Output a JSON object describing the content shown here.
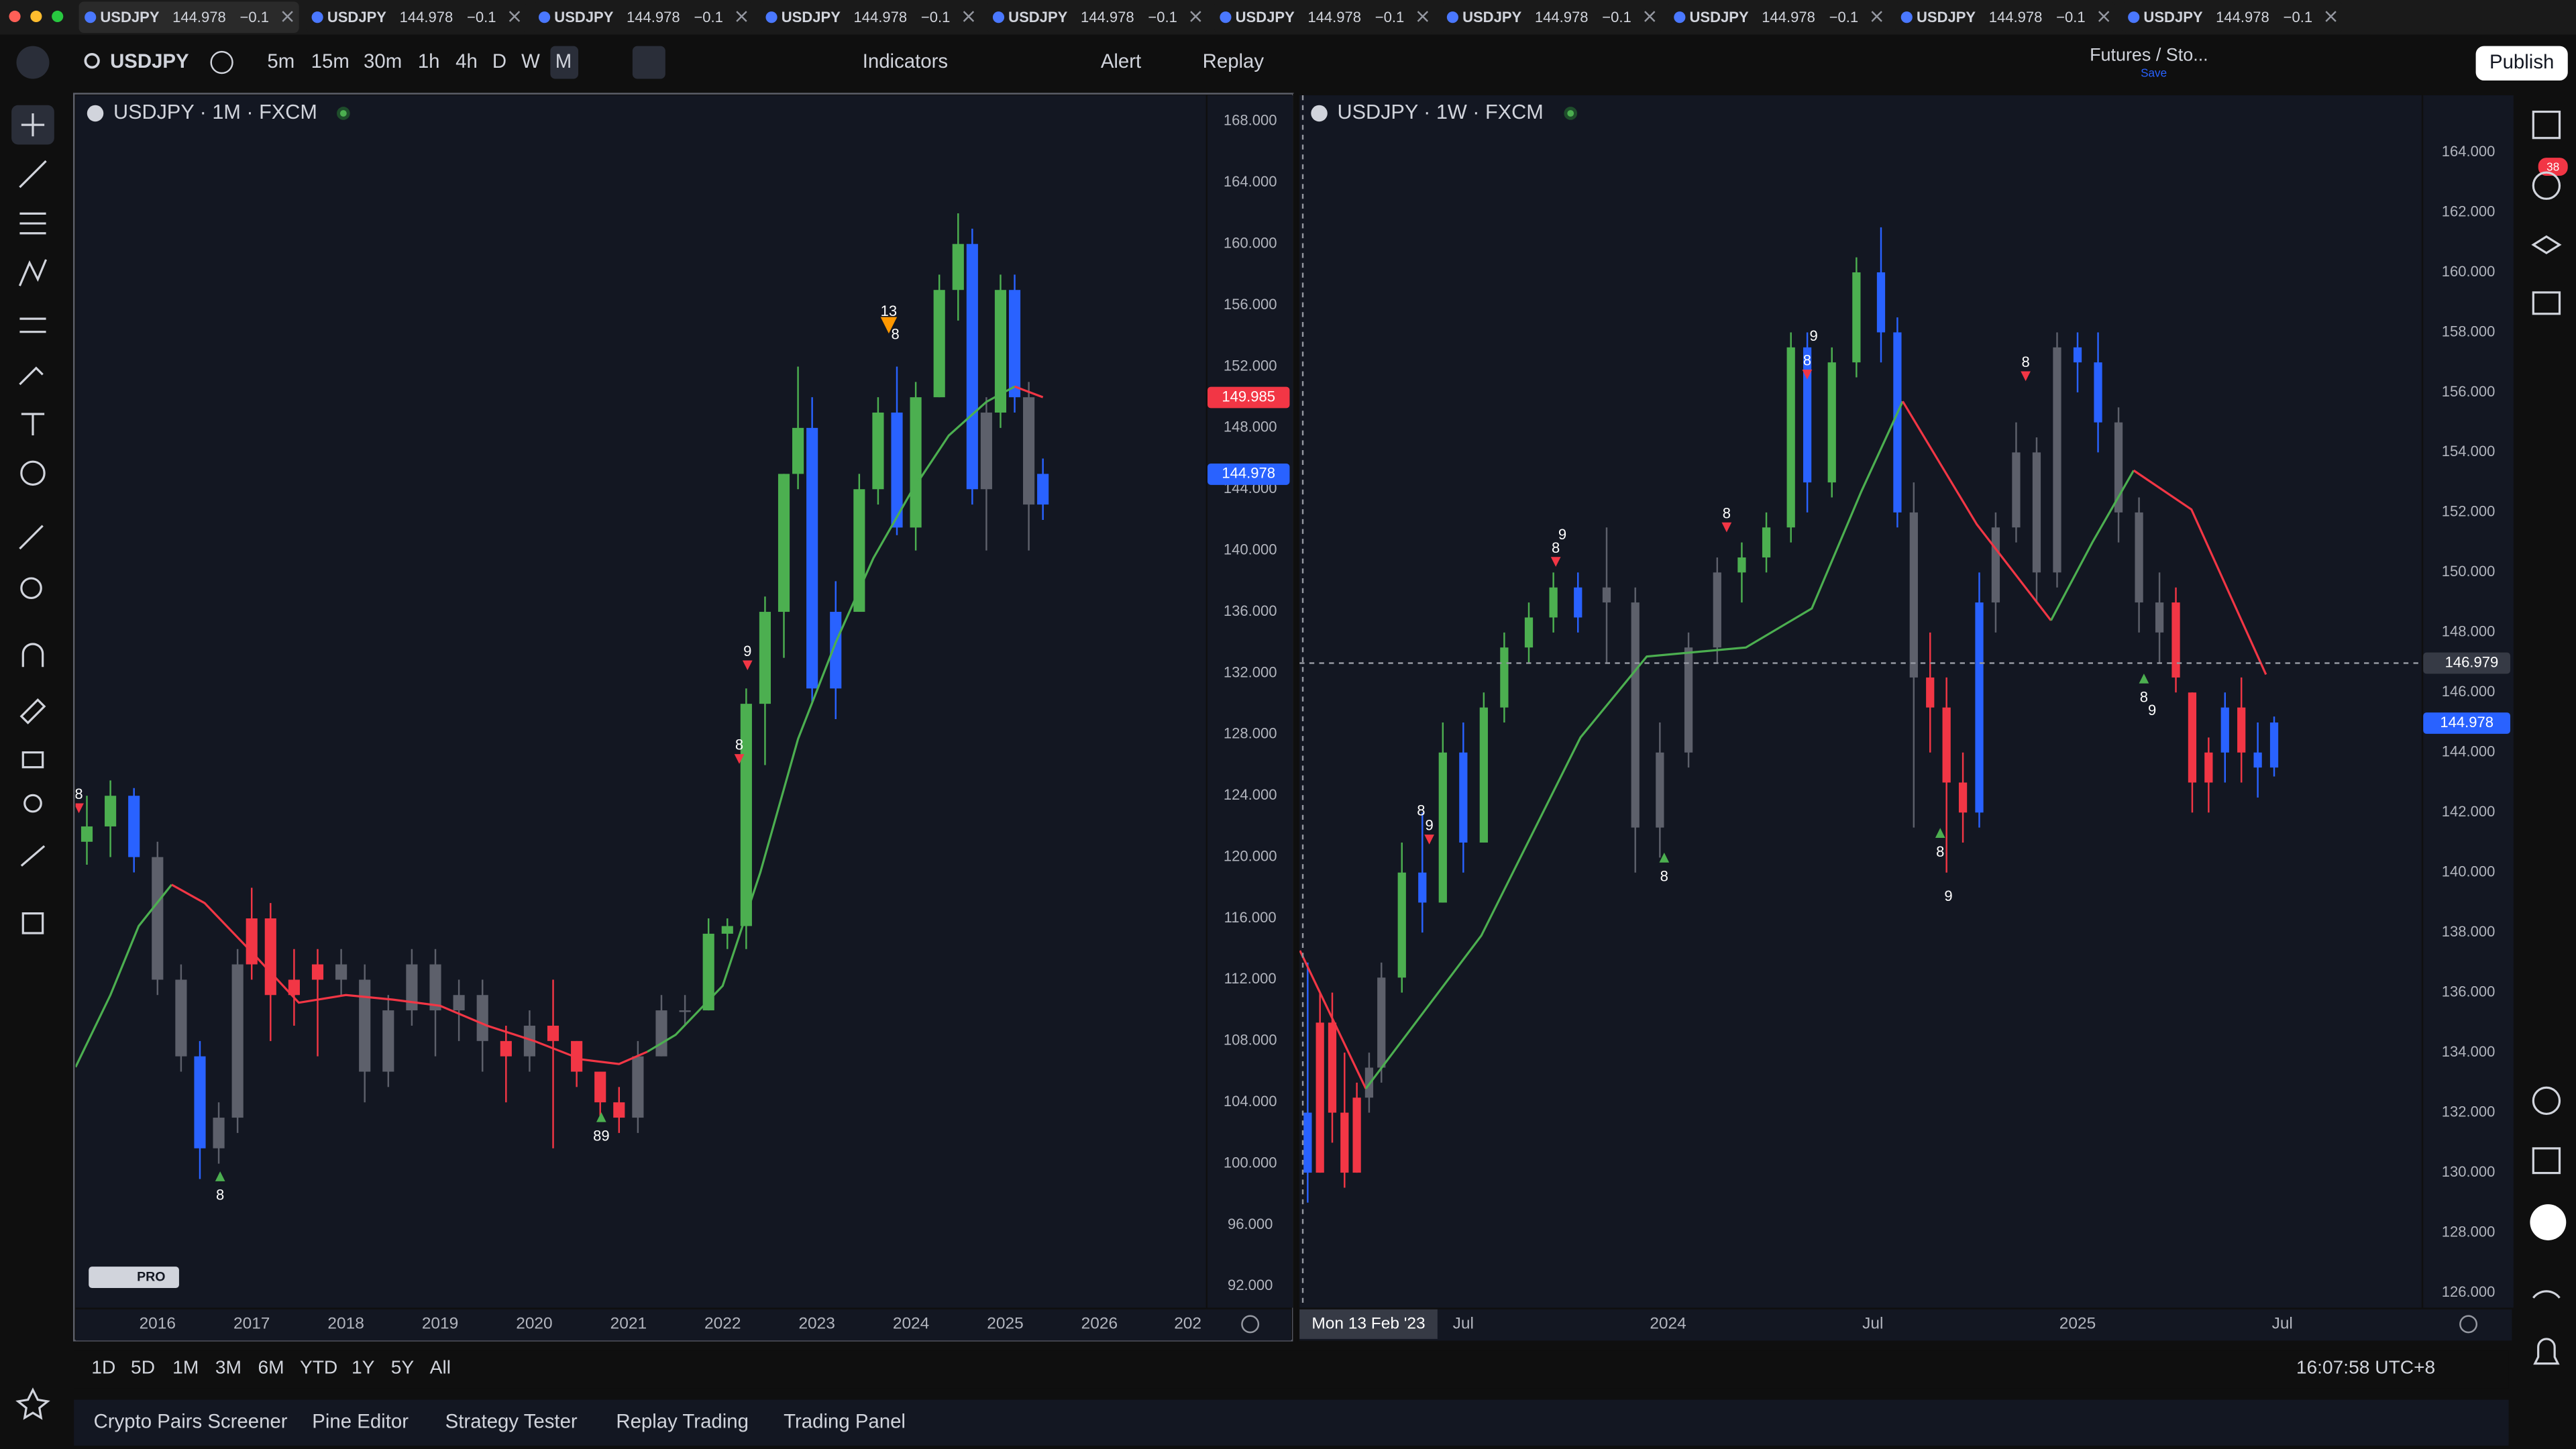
{
  "tabs": [
    {
      "symbol": "USDJPY",
      "price": "144.978",
      "change": "−0.1"
    },
    {
      "symbol": "USDJPY",
      "price": "144.978",
      "change": "−0.1"
    },
    {
      "symbol": "USDJPY",
      "price": "144.978",
      "change": "−0.1"
    },
    {
      "symbol": "USDJPY",
      "price": "144.978",
      "change": "−0.1"
    },
    {
      "symbol": "USDJPY",
      "price": "144.978",
      "change": "−0.1"
    },
    {
      "symbol": "USDJPY",
      "price": "144.978",
      "change": "−0.1"
    },
    {
      "symbol": "USDJPY",
      "price": "144.978",
      "change": "−0.1"
    },
    {
      "symbol": "USDJPY",
      "price": "144.978",
      "change": "−0.1"
    },
    {
      "symbol": "USDJPY",
      "price": "144.978",
      "change": "−0.1"
    },
    {
      "symbol": "USDJPY",
      "price": "144.978",
      "change": "−0.1"
    }
  ],
  "toolbar": {
    "symbol": "USDJPY",
    "intervals": [
      "5m",
      "15m",
      "30m",
      "1h",
      "4h",
      "D",
      "W",
      "M"
    ],
    "indicators": "Indicators",
    "alert": "Alert",
    "replay": "Replay",
    "layout": "Futures / Sto...",
    "save": "Save",
    "publish": "Publish"
  },
  "notifications": 38,
  "logo_badge": "PRO",
  "chart_data": [
    {
      "type": "candlestick",
      "title": "USDJPY · 1M · FXCM",
      "x": [
        2015.25,
        2015.5,
        2015.75,
        2016.0,
        2016.25,
        2016.45,
        2016.65,
        2016.85,
        2017.0,
        2017.2,
        2017.45,
        2017.7,
        2017.95,
        2018.2,
        2018.45,
        2018.7,
        2018.95,
        2019.2,
        2019.45,
        2019.7,
        2019.95,
        2020.2,
        2020.45,
        2020.7,
        2020.9,
        2021.1,
        2021.35,
        2021.6,
        2021.85,
        2022.05,
        2022.25,
        2022.45,
        2022.65,
        2022.8,
        2022.95,
        2023.2,
        2023.45,
        2023.65,
        2023.85,
        2024.05,
        2024.3,
        2024.5,
        2024.65,
        2024.8,
        2024.95,
        2025.1,
        2025.25,
        2025.4
      ],
      "open": [
        121,
        122,
        124,
        120,
        112,
        107,
        101,
        103,
        113,
        116,
        111,
        112,
        113,
        112,
        106,
        110,
        113,
        110,
        111,
        108,
        107,
        109,
        108,
        106,
        104,
        103,
        107,
        110,
        110,
        115,
        115.5,
        130,
        136,
        145,
        148,
        131,
        136,
        144,
        149,
        141.5,
        150,
        157,
        160,
        144,
        149,
        157,
        150,
        143
      ],
      "high": [
        124,
        125,
        124.5,
        121,
        113,
        108,
        104,
        114,
        118,
        117,
        114,
        114,
        114,
        113,
        111,
        114,
        114,
        112,
        112,
        109,
        110,
        112,
        108,
        106,
        105,
        108,
        111,
        111,
        116,
        116,
        131,
        137,
        145,
        152,
        150,
        138,
        145,
        150,
        152,
        151,
        158,
        162,
        161,
        150,
        158,
        158,
        151,
        146
      ],
      "low": [
        119.5,
        120,
        119,
        111,
        106,
        99,
        100,
        102,
        112,
        108,
        109,
        107,
        111,
        104,
        105,
        109,
        107,
        108,
        106,
        104,
        106,
        101,
        105,
        103,
        102,
        102,
        107,
        109,
        110,
        114,
        114,
        126,
        133,
        144,
        130,
        129,
        136,
        143,
        141,
        140,
        150,
        155,
        143,
        140,
        148,
        149,
        140,
        142
      ],
      "close": [
        122,
        124,
        120,
        112,
        107,
        101,
        103,
        113,
        116,
        111,
        112,
        113,
        112,
        106,
        110,
        113,
        110,
        111,
        108,
        107,
        109,
        108,
        106,
        104,
        103,
        107,
        110,
        110,
        115,
        115.5,
        130,
        136,
        145,
        148,
        131,
        136,
        144,
        149,
        141.5,
        150,
        157,
        160,
        144,
        149,
        157,
        150,
        143,
        145
      ],
      "colors": [
        "#4caf50",
        "#4caf50",
        "#2962ff",
        "#5d606b",
        "#5d606b",
        "#2962ff",
        "#5d606b",
        "#5d606b",
        "#f23645",
        "#f23645",
        "#f23645",
        "#f23645",
        "#5d606b",
        "#5d606b",
        "#5d606b",
        "#5d606b",
        "#5d606b",
        "#5d606b",
        "#5d606b",
        "#f23645",
        "#5d606b",
        "#f23645",
        "#f23645",
        "#f23645",
        "#f23645",
        "#5d606b",
        "#5d606b",
        "#5d606b",
        "#4caf50",
        "#4caf50",
        "#4caf50",
        "#4caf50",
        "#4caf50",
        "#4caf50",
        "#2962ff",
        "#2962ff",
        "#4caf50",
        "#4caf50",
        "#2962ff",
        "#4caf50",
        "#4caf50",
        "#4caf50",
        "#2962ff",
        "#5d606b",
        "#4caf50",
        "#2962ff",
        "#5d606b",
        "#2962ff"
      ],
      "lines": [
        {
          "color": "#4caf50",
          "x": [
            2015.13,
            2015.5,
            2015.8,
            2016.15
          ],
          "values": [
            106.3,
            111,
            115.5,
            118.2
          ]
        },
        {
          "color": "#f23645",
          "x": [
            2016.15,
            2016.5,
            2017.0,
            2017.5,
            2018.0,
            2018.5,
            2019.0,
            2019.5,
            2020.0,
            2020.5,
            2020.9,
            2021.2
          ],
          "values": [
            118.2,
            117,
            113.8,
            110.5,
            111,
            110.7,
            110.3,
            109,
            108,
            106.8,
            106.5,
            107.3
          ]
        },
        {
          "color": "#4caf50",
          "x": [
            2021.2,
            2021.5,
            2022.0,
            2022.4,
            2022.8,
            2023.2,
            2023.6,
            2024.0,
            2024.4,
            2024.8,
            2025.1
          ],
          "values": [
            107.3,
            108.4,
            111.6,
            119,
            127.7,
            134,
            139.5,
            143.8,
            147.5,
            149.7,
            150.7
          ]
        },
        {
          "color": "#f23645",
          "x": [
            2025.1,
            2025.4
          ],
          "values": [
            150.7,
            150
          ]
        }
      ],
      "annotations": [
        8,
        8,
        89,
        9,
        8,
        13,
        8
      ],
      "price_labels": [
        {
          "value": 149.985,
          "color": "#f23645"
        },
        {
          "value": 144.978,
          "color": "#2962ff"
        }
      ],
      "xlim": [
        2015.13,
        2027.13
      ],
      "xticks": [
        2016,
        2017,
        2018,
        2019,
        2020,
        2021,
        2022,
        2023,
        2024,
        2025,
        2026,
        {
          "value": 2027,
          "label": "202"
        }
      ],
      "ylim": [
        90.6,
        169.7
      ],
      "yticks": [
        {
          "value": 92,
          "label": "92.000"
        },
        {
          "value": 96,
          "label": "96.000"
        },
        {
          "value": 100,
          "label": "100.000"
        },
        {
          "value": 104,
          "label": "104.000"
        },
        {
          "value": 108,
          "label": "108.000"
        },
        {
          "value": 112,
          "label": "112.000"
        },
        {
          "value": 116,
          "label": "116.000"
        },
        {
          "value": 120,
          "label": "120.000"
        },
        {
          "value": 124,
          "label": "124.000"
        },
        {
          "value": 128,
          "label": "128.000"
        },
        {
          "value": 132,
          "label": "132.000"
        },
        {
          "value": 136,
          "label": "136.000"
        },
        {
          "value": 140,
          "label": "140.000"
        },
        {
          "value": 144,
          "label": "144.000"
        },
        {
          "value": 148,
          "label": "148.000"
        },
        {
          "value": 152,
          "label": "152.000"
        },
        {
          "value": 156,
          "label": "156.000"
        },
        {
          "value": 160,
          "label": "160.000"
        },
        {
          "value": 164,
          "label": "164.000"
        },
        {
          "value": 168,
          "label": "168.000"
        }
      ]
    },
    {
      "type": "candlestick",
      "title": "USDJPY · 1W · FXCM",
      "x": [
        2023.12,
        2023.15,
        2023.18,
        2023.21,
        2023.24,
        2023.27,
        2023.3,
        2023.35,
        2023.4,
        2023.45,
        2023.5,
        2023.55,
        2023.6,
        2023.66,
        2023.72,
        2023.78,
        2023.85,
        2023.92,
        2023.98,
        2024.05,
        2024.12,
        2024.18,
        2024.24,
        2024.3,
        2024.34,
        2024.4,
        2024.46,
        2024.52,
        2024.56,
        2024.6,
        2024.64,
        2024.68,
        2024.72,
        2024.76,
        2024.8,
        2024.85,
        2024.9,
        2024.95,
        2025.0,
        2025.05,
        2025.1,
        2025.15,
        2025.2,
        2025.24,
        2025.28,
        2025.32,
        2025.36,
        2025.4,
        2025.44,
        2025.48
      ],
      "open": [
        132,
        130,
        135,
        132,
        130,
        132.5,
        133.5,
        136.5,
        140,
        139,
        144,
        141,
        145.5,
        147.5,
        148.5,
        149.5,
        149.5,
        149,
        141.5,
        144,
        147.5,
        150,
        150.5,
        151.5,
        157.5,
        153,
        157,
        160,
        158,
        152,
        146.5,
        145.5,
        143,
        142,
        149,
        151.5,
        154,
        150,
        157.5,
        157,
        155,
        152,
        149,
        149,
        146,
        143,
        144,
        145.5,
        144,
        143.5
      ],
      "high": [
        137,
        136,
        136,
        134,
        133,
        134,
        137,
        141,
        142,
        145,
        145,
        146,
        148,
        149,
        150,
        150,
        151.5,
        149.5,
        145,
        148,
        150.5,
        151,
        152,
        158,
        158,
        157.5,
        160.5,
        161.5,
        158.5,
        153,
        148,
        146.5,
        144,
        150,
        152,
        155,
        154.5,
        158,
        158,
        158,
        155.5,
        152.5,
        150,
        149.5,
        146,
        144.5,
        146,
        146.5,
        145,
        145.2
      ],
      "low": [
        129,
        130,
        131,
        129.5,
        130,
        132,
        133,
        136,
        138,
        139,
        140,
        141,
        145,
        147,
        148,
        148,
        147,
        140,
        140.5,
        143.5,
        147,
        149,
        150,
        151,
        152,
        152.5,
        156.5,
        157,
        151.5,
        141.5,
        144,
        140,
        141,
        141.5,
        148,
        151,
        149,
        149.5,
        156,
        154,
        151,
        148,
        147,
        146,
        142,
        142,
        143,
        143,
        142.5,
        143.2
      ],
      "close": [
        130,
        135,
        132,
        130,
        132.5,
        133.5,
        136.5,
        140,
        139,
        144,
        141,
        145.5,
        147.5,
        148.5,
        149.5,
        148.5,
        149,
        141.5,
        144,
        147.5,
        150,
        150.5,
        151.5,
        157.5,
        153,
        157,
        160,
        158,
        152,
        146.5,
        145.5,
        143,
        142,
        149,
        151.5,
        154,
        150,
        157.5,
        157,
        155,
        152,
        149,
        148,
        146.5,
        143,
        144,
        145.5,
        144,
        143.5,
        145
      ],
      "colors": [
        "#2962ff",
        "#f23645",
        "#f23645",
        "#f23645",
        "#f23645",
        "#5d606b",
        "#5d606b",
        "#4caf50",
        "#2962ff",
        "#4caf50",
        "#2962ff",
        "#4caf50",
        "#4caf50",
        "#4caf50",
        "#4caf50",
        "#2962ff",
        "#5d606b",
        "#5d606b",
        "#5d606b",
        "#5d606b",
        "#5d606b",
        "#4caf50",
        "#4caf50",
        "#4caf50",
        "#2962ff",
        "#4caf50",
        "#4caf50",
        "#2962ff",
        "#2962ff",
        "#5d606b",
        "#f23645",
        "#f23645",
        "#f23645",
        "#2962ff",
        "#5d606b",
        "#5d606b",
        "#5d606b",
        "#5d606b",
        "#2962ff",
        "#2962ff",
        "#5d606b",
        "#5d606b",
        "#5d606b",
        "#f23645",
        "#f23645",
        "#f23645",
        "#2962ff",
        "#f23645",
        "#2962ff",
        "#2962ff"
      ],
      "lines": [
        {
          "color": "#f23645",
          "x": [
            2023.101,
            2023.262
          ],
          "values": [
            137.4,
            132.8
          ]
        },
        {
          "color": "#4caf50",
          "x": [
            2023.262,
            2023.544,
            2023.786,
            2023.948,
            2024.19,
            2024.351,
            2024.472,
            2024.573
          ],
          "values": [
            132.8,
            137.9,
            144.5,
            147.2,
            147.5,
            148.8,
            152.7,
            155.7
          ]
        },
        {
          "color": "#f23645",
          "x": [
            2024.573,
            2024.754,
            2024.935
          ],
          "values": [
            155.7,
            151.6,
            148.4
          ]
        },
        {
          "color": "#4caf50",
          "x": [
            2024.935,
            2025.036,
            2025.137
          ],
          "values": [
            148.4,
            151,
            153.4
          ]
        },
        {
          "color": "#f23645",
          "x": [
            2025.137,
            2025.278,
            2025.46
          ],
          "values": [
            153.4,
            152.1,
            146.6
          ]
        }
      ],
      "annotations": [
        9,
        8,
        8,
        9,
        8,
        8,
        8,
        9,
        8,
        8,
        9,
        8,
        9
      ],
      "price_labels": [
        {
          "value": 144.978,
          "color": "#2962ff"
        }
      ],
      "crosshair": {
        "price": 146.979,
        "date": "Mon 13 Feb '23"
      },
      "xlim": [
        2023.1,
        2025.84
      ],
      "xticks": [
        {
          "value": 2023.5,
          "label": "Jul"
        },
        2024,
        {
          "value": 2024.5,
          "label": "Jul"
        },
        2025,
        {
          "value": 2025.5,
          "label": "Jul"
        }
      ],
      "ylim": [
        125.5,
        165.9
      ],
      "yticks": [
        {
          "value": 126,
          "label": "126.000"
        },
        {
          "value": 128,
          "label": "128.000"
        },
        {
          "value": 130,
          "label": "130.000"
        },
        {
          "value": 132,
          "label": "132.000"
        },
        {
          "value": 134,
          "label": "134.000"
        },
        {
          "value": 136,
          "label": "136.000"
        },
        {
          "value": 138,
          "label": "138.000"
        },
        {
          "value": 140,
          "label": "140.000"
        },
        {
          "value": 142,
          "label": "142.000"
        },
        {
          "value": 144,
          "label": "144.000"
        },
        {
          "value": 146,
          "label": "146.000"
        },
        {
          "value": 148,
          "label": "148.000"
        },
        {
          "value": 150,
          "label": "150.000"
        },
        {
          "value": 152,
          "label": "152.000"
        },
        {
          "value": 154,
          "label": "154.000"
        },
        {
          "value": 156,
          "label": "156.000"
        },
        {
          "value": 158,
          "label": "158.000"
        },
        {
          "value": 160,
          "label": "160.000"
        },
        {
          "value": 162,
          "label": "162.000"
        },
        {
          "value": 164,
          "label": "164.000"
        }
      ]
    }
  ],
  "bottom_bar": {
    "ranges": [
      "1D",
      "5D",
      "1M",
      "3M",
      "6M",
      "YTD",
      "1Y",
      "5Y",
      "All"
    ],
    "clock": "16:07:58 UTC+8"
  },
  "bottom_tabs": [
    "Crypto Pairs Screener",
    "Pine Editor",
    "Strategy Tester",
    "Replay Trading",
    "Trading Panel"
  ]
}
